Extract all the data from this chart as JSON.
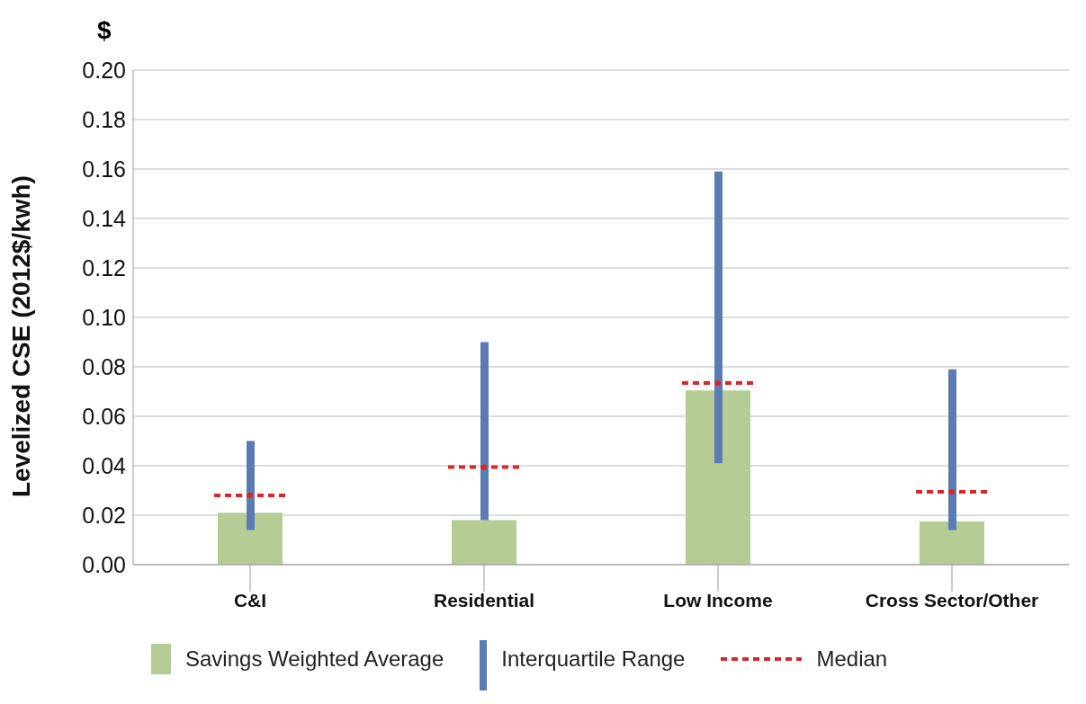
{
  "chart_data": {
    "type": "bar",
    "ylabel": "Levelized CSE (2012$/kwh)",
    "annotations": [
      "$"
    ],
    "categories": [
      "C&I",
      "Residential",
      "Low Income",
      "Cross Sector/Other"
    ],
    "series": [
      {
        "name": "Savings Weighted Average",
        "color": "#b5cc95",
        "values": [
          0.021,
          0.018,
          0.0705,
          0.0175
        ]
      },
      {
        "name": "Interquartile Range",
        "color": "#5b7bb3",
        "base": [
          0.014,
          0.018,
          0.041,
          0.014
        ],
        "values": [
          0.036,
          0.072,
          0.118,
          0.065
        ]
      },
      {
        "name": "Median",
        "type": "scatter",
        "color": "#d9262b",
        "line_style": "dashed",
        "values": [
          0.028,
          0.0395,
          0.0735,
          0.0295
        ]
      }
    ],
    "ylim": [
      0,
      0.2
    ],
    "yticks": [
      {
        "value": 0,
        "label": "0.00"
      },
      {
        "value": 0.02,
        "label": "0.02"
      },
      {
        "value": 0.04,
        "label": "0.04"
      },
      {
        "value": 0.06,
        "label": "0.06"
      },
      {
        "value": 0.08,
        "label": "0.08"
      },
      {
        "value": 0.1,
        "label": "0.10"
      },
      {
        "value": 0.12,
        "label": "0.12"
      },
      {
        "value": 0.14,
        "label": "0.14"
      },
      {
        "value": 0.16,
        "label": "0.16"
      },
      {
        "value": 0.18,
        "label": "0.18"
      },
      {
        "value": 0.2,
        "label": "0.20"
      }
    ],
    "grid": "y",
    "legend": "bottom"
  }
}
